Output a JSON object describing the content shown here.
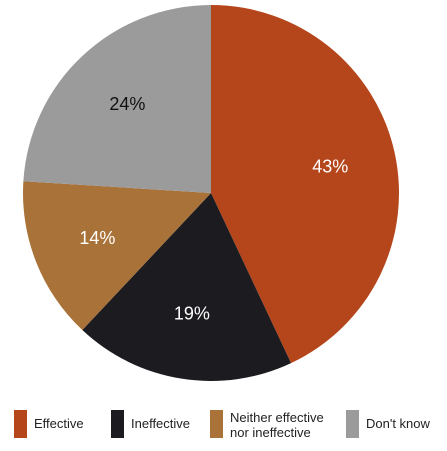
{
  "chart_data": {
    "type": "pie",
    "categories": [
      "Effective",
      "Ineffective",
      "Neither effective nor ineffective",
      "Don't know"
    ],
    "values": [
      43,
      19,
      14,
      24
    ],
    "labels": [
      "43%",
      "19%",
      "14%",
      "24%"
    ],
    "colors": [
      "#b5451b",
      "#1c1b1f",
      "#a87239",
      "#9b9b9b"
    ],
    "label_colors": [
      "#ffffff",
      "#ffffff",
      "#ffffff",
      "#111111"
    ],
    "legend_placement": "bottom"
  },
  "legend": {
    "items": [
      {
        "label": "Effective",
        "color": "#b5451b"
      },
      {
        "label": "Ineffective",
        "color": "#1c1b1f"
      },
      {
        "label": "Neither effective nor ineffective",
        "color": "#a87239"
      },
      {
        "label": "Don't know",
        "color": "#9b9b9b"
      }
    ]
  }
}
